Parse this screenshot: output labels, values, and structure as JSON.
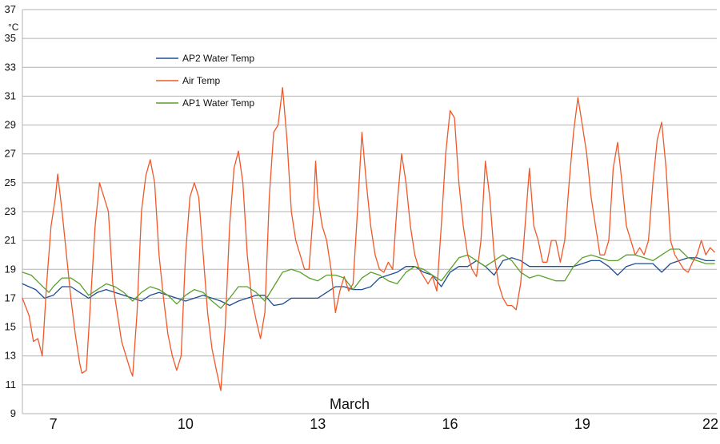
{
  "chart_data": {
    "type": "line",
    "title": "",
    "xlabel": "March",
    "ylabel": "°C",
    "ylim": [
      9,
      37
    ],
    "yticks": [
      9,
      11,
      13,
      15,
      17,
      19,
      21,
      23,
      25,
      27,
      29,
      31,
      33,
      35,
      37
    ],
    "xlim": [
      6.3,
      22.05
    ],
    "xticks": [
      7,
      10,
      13,
      16,
      19,
      22
    ],
    "grid": true,
    "legend_position": "top-left",
    "series": [
      {
        "name": "AP2 Water Temp",
        "color": "#1f4e96",
        "points": [
          [
            6.3,
            18.0
          ],
          [
            6.6,
            17.6
          ],
          [
            6.8,
            17.0
          ],
          [
            7.0,
            17.2
          ],
          [
            7.2,
            17.8
          ],
          [
            7.4,
            17.8
          ],
          [
            7.6,
            17.4
          ],
          [
            7.8,
            17.0
          ],
          [
            8.0,
            17.4
          ],
          [
            8.2,
            17.6
          ],
          [
            8.4,
            17.4
          ],
          [
            8.6,
            17.2
          ],
          [
            8.8,
            17.0
          ],
          [
            9.0,
            16.8
          ],
          [
            9.2,
            17.2
          ],
          [
            9.4,
            17.4
          ],
          [
            9.6,
            17.2
          ],
          [
            9.8,
            17.0
          ],
          [
            10.0,
            16.8
          ],
          [
            10.2,
            17.0
          ],
          [
            10.4,
            17.2
          ],
          [
            10.6,
            17.0
          ],
          [
            10.8,
            16.8
          ],
          [
            11.0,
            16.5
          ],
          [
            11.2,
            16.8
          ],
          [
            11.4,
            17.0
          ],
          [
            11.6,
            17.2
          ],
          [
            11.8,
            17.2
          ],
          [
            12.0,
            16.5
          ],
          [
            12.2,
            16.6
          ],
          [
            12.4,
            17.0
          ],
          [
            12.6,
            17.0
          ],
          [
            12.8,
            17.0
          ],
          [
            13.0,
            17.0
          ],
          [
            13.2,
            17.4
          ],
          [
            13.4,
            17.8
          ],
          [
            13.6,
            17.8
          ],
          [
            13.8,
            17.6
          ],
          [
            14.0,
            17.6
          ],
          [
            14.2,
            17.8
          ],
          [
            14.4,
            18.4
          ],
          [
            14.6,
            18.6
          ],
          [
            14.8,
            18.8
          ],
          [
            15.0,
            19.2
          ],
          [
            15.2,
            19.2
          ],
          [
            15.4,
            18.8
          ],
          [
            15.6,
            18.6
          ],
          [
            15.8,
            17.8
          ],
          [
            16.0,
            18.8
          ],
          [
            16.2,
            19.2
          ],
          [
            16.4,
            19.2
          ],
          [
            16.6,
            19.6
          ],
          [
            16.8,
            19.2
          ],
          [
            17.0,
            18.6
          ],
          [
            17.2,
            19.6
          ],
          [
            17.4,
            19.8
          ],
          [
            17.6,
            19.6
          ],
          [
            17.8,
            19.2
          ],
          [
            18.0,
            19.2
          ],
          [
            18.2,
            19.2
          ],
          [
            18.4,
            19.2
          ],
          [
            18.6,
            19.2
          ],
          [
            18.8,
            19.2
          ],
          [
            19.0,
            19.4
          ],
          [
            19.2,
            19.6
          ],
          [
            19.4,
            19.6
          ],
          [
            19.6,
            19.2
          ],
          [
            19.8,
            18.6
          ],
          [
            20.0,
            19.2
          ],
          [
            20.2,
            19.4
          ],
          [
            20.4,
            19.4
          ],
          [
            20.6,
            19.4
          ],
          [
            20.8,
            18.8
          ],
          [
            21.0,
            19.4
          ],
          [
            21.2,
            19.6
          ],
          [
            21.4,
            19.8
          ],
          [
            21.6,
            19.8
          ],
          [
            21.8,
            19.6
          ],
          [
            22.0,
            19.6
          ]
        ]
      },
      {
        "name": "Air Temp",
        "color": "#f0582a",
        "points": [
          [
            6.3,
            17.0
          ],
          [
            6.45,
            15.8
          ],
          [
            6.55,
            14.0
          ],
          [
            6.65,
            14.2
          ],
          [
            6.75,
            13.0
          ],
          [
            6.85,
            18.0
          ],
          [
            6.95,
            22.0
          ],
          [
            7.05,
            24.0
          ],
          [
            7.1,
            25.6
          ],
          [
            7.2,
            23.0
          ],
          [
            7.3,
            20.0
          ],
          [
            7.4,
            17.0
          ],
          [
            7.5,
            14.5
          ],
          [
            7.6,
            12.5
          ],
          [
            7.65,
            11.8
          ],
          [
            7.75,
            12.0
          ],
          [
            7.85,
            17.0
          ],
          [
            7.95,
            22.0
          ],
          [
            8.05,
            25.0
          ],
          [
            8.15,
            24.0
          ],
          [
            8.25,
            23.0
          ],
          [
            8.35,
            18.0
          ],
          [
            8.45,
            16.0
          ],
          [
            8.55,
            14.0
          ],
          [
            8.65,
            13.0
          ],
          [
            8.75,
            12.0
          ],
          [
            8.8,
            11.6
          ],
          [
            8.9,
            16.0
          ],
          [
            9.0,
            23.0
          ],
          [
            9.1,
            25.5
          ],
          [
            9.2,
            26.6
          ],
          [
            9.3,
            25.0
          ],
          [
            9.4,
            20.0
          ],
          [
            9.5,
            17.0
          ],
          [
            9.6,
            14.5
          ],
          [
            9.7,
            13.0
          ],
          [
            9.8,
            12.0
          ],
          [
            9.9,
            13.0
          ],
          [
            10.0,
            20.0
          ],
          [
            10.1,
            24.0
          ],
          [
            10.2,
            25.0
          ],
          [
            10.3,
            24.0
          ],
          [
            10.4,
            20.0
          ],
          [
            10.5,
            16.0
          ],
          [
            10.6,
            13.5
          ],
          [
            10.7,
            12.0
          ],
          [
            10.8,
            10.6
          ],
          [
            10.9,
            15.0
          ],
          [
            11.0,
            22.0
          ],
          [
            11.1,
            26.0
          ],
          [
            11.2,
            27.2
          ],
          [
            11.3,
            25.0
          ],
          [
            11.4,
            20.0
          ],
          [
            11.5,
            17.0
          ],
          [
            11.6,
            15.5
          ],
          [
            11.7,
            14.2
          ],
          [
            11.8,
            16.0
          ],
          [
            11.9,
            24.0
          ],
          [
            12.0,
            28.5
          ],
          [
            12.1,
            29.0
          ],
          [
            12.2,
            31.6
          ],
          [
            12.3,
            28.0
          ],
          [
            12.4,
            23.0
          ],
          [
            12.5,
            21.0
          ],
          [
            12.6,
            20.0
          ],
          [
            12.7,
            19.0
          ],
          [
            12.8,
            19.0
          ],
          [
            12.9,
            23.0
          ],
          [
            12.95,
            26.5
          ],
          [
            13.0,
            24.0
          ],
          [
            13.1,
            22.0
          ],
          [
            13.2,
            21.0
          ],
          [
            13.3,
            19.0
          ],
          [
            13.4,
            16.0
          ],
          [
            13.5,
            17.5
          ],
          [
            13.6,
            18.5
          ],
          [
            13.7,
            17.5
          ],
          [
            13.8,
            18.0
          ],
          [
            13.9,
            23.0
          ],
          [
            14.0,
            28.5
          ],
          [
            14.1,
            25.0
          ],
          [
            14.2,
            22.0
          ],
          [
            14.3,
            20.0
          ],
          [
            14.4,
            19.0
          ],
          [
            14.5,
            18.8
          ],
          [
            14.6,
            19.5
          ],
          [
            14.7,
            19.0
          ],
          [
            14.8,
            23.5
          ],
          [
            14.9,
            27.0
          ],
          [
            15.0,
            25.0
          ],
          [
            15.1,
            22.0
          ],
          [
            15.2,
            20.0
          ],
          [
            15.3,
            19.0
          ],
          [
            15.4,
            18.5
          ],
          [
            15.5,
            18.0
          ],
          [
            15.6,
            18.5
          ],
          [
            15.7,
            17.5
          ],
          [
            15.8,
            22.0
          ],
          [
            15.9,
            27.0
          ],
          [
            16.0,
            30.0
          ],
          [
            16.1,
            29.5
          ],
          [
            16.2,
            25.0
          ],
          [
            16.3,
            22.0
          ],
          [
            16.4,
            20.0
          ],
          [
            16.5,
            19.0
          ],
          [
            16.6,
            18.5
          ],
          [
            16.7,
            21.0
          ],
          [
            16.8,
            26.5
          ],
          [
            16.9,
            24.0
          ],
          [
            17.0,
            20.0
          ],
          [
            17.1,
            18.0
          ],
          [
            17.2,
            17.0
          ],
          [
            17.3,
            16.5
          ],
          [
            17.4,
            16.5
          ],
          [
            17.5,
            16.2
          ],
          [
            17.6,
            18.0
          ],
          [
            17.7,
            22.0
          ],
          [
            17.8,
            26.0
          ],
          [
            17.9,
            22.0
          ],
          [
            18.0,
            21.0
          ],
          [
            18.1,
            19.5
          ],
          [
            18.2,
            19.5
          ],
          [
            18.3,
            21.0
          ],
          [
            18.4,
            21.0
          ],
          [
            18.5,
            19.5
          ],
          [
            18.6,
            21.0
          ],
          [
            18.7,
            25.0
          ],
          [
            18.8,
            28.5
          ],
          [
            18.9,
            30.9
          ],
          [
            19.0,
            29.0
          ],
          [
            19.1,
            27.0
          ],
          [
            19.2,
            24.0
          ],
          [
            19.3,
            22.0
          ],
          [
            19.4,
            20.0
          ],
          [
            19.5,
            20.0
          ],
          [
            19.6,
            21.0
          ],
          [
            19.7,
            26.0
          ],
          [
            19.8,
            27.8
          ],
          [
            19.9,
            25.0
          ],
          [
            20.0,
            22.0
          ],
          [
            20.1,
            21.0
          ],
          [
            20.2,
            20.0
          ],
          [
            20.3,
            20.5
          ],
          [
            20.4,
            20.0
          ],
          [
            20.5,
            21.0
          ],
          [
            20.6,
            25.0
          ],
          [
            20.7,
            28.0
          ],
          [
            20.8,
            29.2
          ],
          [
            20.9,
            26.0
          ],
          [
            21.0,
            21.0
          ],
          [
            21.1,
            20.0
          ],
          [
            21.2,
            19.5
          ],
          [
            21.3,
            19.0
          ],
          [
            21.4,
            18.8
          ],
          [
            21.5,
            19.5
          ],
          [
            21.6,
            20.0
          ],
          [
            21.7,
            21.0
          ],
          [
            21.8,
            20.0
          ],
          [
            21.9,
            20.5
          ],
          [
            22.0,
            20.2
          ]
        ]
      },
      {
        "name": "AP1 Water Temp",
        "color": "#5aa02c",
        "points": [
          [
            6.3,
            18.8
          ],
          [
            6.5,
            18.6
          ],
          [
            6.7,
            18.0
          ],
          [
            6.9,
            17.4
          ],
          [
            7.0,
            17.8
          ],
          [
            7.2,
            18.4
          ],
          [
            7.4,
            18.4
          ],
          [
            7.6,
            18.0
          ],
          [
            7.8,
            17.2
          ],
          [
            8.0,
            17.6
          ],
          [
            8.2,
            18.0
          ],
          [
            8.4,
            17.8
          ],
          [
            8.6,
            17.4
          ],
          [
            8.8,
            16.8
          ],
          [
            9.0,
            17.4
          ],
          [
            9.2,
            17.8
          ],
          [
            9.4,
            17.6
          ],
          [
            9.6,
            17.2
          ],
          [
            9.8,
            16.6
          ],
          [
            10.0,
            17.2
          ],
          [
            10.2,
            17.6
          ],
          [
            10.4,
            17.4
          ],
          [
            10.6,
            16.8
          ],
          [
            10.8,
            16.3
          ],
          [
            11.0,
            17.0
          ],
          [
            11.2,
            17.8
          ],
          [
            11.4,
            17.8
          ],
          [
            11.6,
            17.4
          ],
          [
            11.8,
            16.8
          ],
          [
            12.0,
            17.8
          ],
          [
            12.2,
            18.8
          ],
          [
            12.4,
            19.0
          ],
          [
            12.6,
            18.8
          ],
          [
            12.8,
            18.4
          ],
          [
            13.0,
            18.2
          ],
          [
            13.2,
            18.6
          ],
          [
            13.4,
            18.6
          ],
          [
            13.6,
            18.4
          ],
          [
            13.8,
            17.6
          ],
          [
            14.0,
            18.4
          ],
          [
            14.2,
            18.8
          ],
          [
            14.4,
            18.6
          ],
          [
            14.6,
            18.2
          ],
          [
            14.8,
            18.0
          ],
          [
            15.0,
            18.8
          ],
          [
            15.2,
            19.2
          ],
          [
            15.4,
            19.0
          ],
          [
            15.6,
            18.6
          ],
          [
            15.8,
            18.2
          ],
          [
            16.0,
            19.0
          ],
          [
            16.2,
            19.8
          ],
          [
            16.4,
            20.0
          ],
          [
            16.6,
            19.6
          ],
          [
            16.8,
            19.2
          ],
          [
            17.0,
            19.6
          ],
          [
            17.2,
            20.0
          ],
          [
            17.4,
            19.6
          ],
          [
            17.6,
            18.8
          ],
          [
            17.8,
            18.4
          ],
          [
            18.0,
            18.6
          ],
          [
            18.2,
            18.4
          ],
          [
            18.4,
            18.2
          ],
          [
            18.6,
            18.2
          ],
          [
            18.8,
            19.2
          ],
          [
            19.0,
            19.8
          ],
          [
            19.2,
            20.0
          ],
          [
            19.4,
            19.8
          ],
          [
            19.6,
            19.6
          ],
          [
            19.8,
            19.6
          ],
          [
            20.0,
            20.0
          ],
          [
            20.2,
            20.0
          ],
          [
            20.4,
            19.8
          ],
          [
            20.6,
            19.6
          ],
          [
            20.8,
            20.0
          ],
          [
            21.0,
            20.4
          ],
          [
            21.2,
            20.4
          ],
          [
            21.4,
            19.8
          ],
          [
            21.6,
            19.6
          ],
          [
            21.8,
            19.4
          ],
          [
            22.0,
            19.4
          ]
        ]
      }
    ]
  }
}
